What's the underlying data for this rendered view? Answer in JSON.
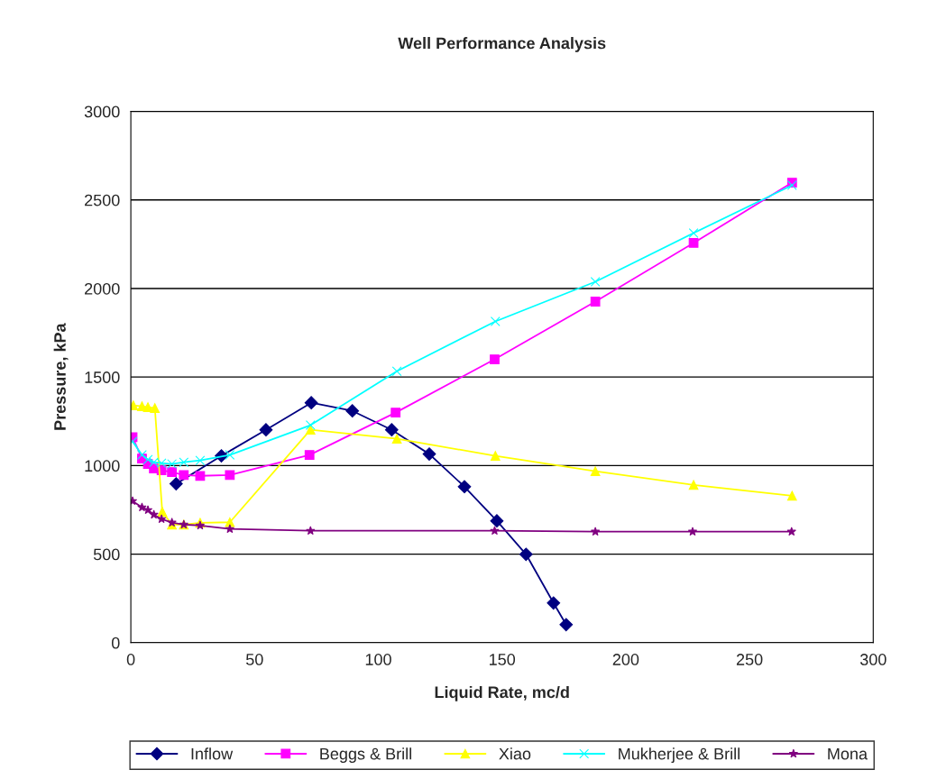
{
  "chart_data": {
    "type": "line",
    "title": "Well Performance Analysis",
    "xlabel": "Liquid Rate, mc/d",
    "ylabel": "Pressure, kPa",
    "xlim": [
      0,
      300
    ],
    "xticks": [
      0,
      50,
      100,
      150,
      200,
      250,
      300
    ],
    "ylim": [
      0,
      3000
    ],
    "yticks": [
      0,
      500,
      1000,
      1500,
      2000,
      2500,
      3000
    ],
    "grid": "y",
    "legend": "bottom",
    "series": [
      {
        "name": "Inflow",
        "color": "#000080",
        "marker": "diamond",
        "x": [
          18.3,
          36.6,
          54.6,
          72.9,
          89.5,
          105.4,
          120.6,
          134.8,
          147.9,
          159.7,
          170.8,
          175.9
        ],
        "values": [
          897,
          1055,
          1202,
          1355,
          1309,
          1202,
          1065,
          881,
          688,
          499,
          224,
          102
        ]
      },
      {
        "name": "Beggs & Brill",
        "color": "#ff00ff",
        "marker": "square",
        "x": [
          0.7,
          4.5,
          6.9,
          9.3,
          12.4,
          16.6,
          21.4,
          28,
          40,
          72.2,
          107,
          147,
          187.7,
          227.4,
          267.2
        ],
        "values": [
          1161,
          1039,
          1009,
          983,
          973,
          963,
          947,
          942,
          947,
          1060,
          1299,
          1600,
          1926,
          2257,
          2598
        ]
      },
      {
        "name": "Xiao",
        "color": "#ffff00",
        "marker": "triangle",
        "x": [
          1,
          4.5,
          6.9,
          9.7,
          12.7,
          16.6,
          21.4,
          28,
          40,
          72.6,
          107.5,
          147.3,
          187.7,
          227.4,
          267.2
        ],
        "values": [
          1340,
          1335,
          1330,
          1325,
          739,
          667,
          667,
          677,
          680,
          1202,
          1151,
          1055,
          968,
          891,
          830
        ]
      },
      {
        "name": "Mukherjee & Brill",
        "color": "#00ffff",
        "marker": "cross",
        "x": [
          0.7,
          4.5,
          6.9,
          9.3,
          12.4,
          16.6,
          21.4,
          28,
          40,
          72.6,
          107.5,
          147.3,
          187.7,
          227.4,
          267.2
        ],
        "values": [
          1136,
          1060,
          1034,
          1019,
          1014,
          1009,
          1019,
          1029,
          1060,
          1228,
          1533,
          1814,
          2038,
          2313,
          2583
        ]
      },
      {
        "name": "Mona",
        "color": "#800080",
        "marker": "star",
        "x": [
          0.7,
          4.5,
          6.9,
          9.3,
          12.4,
          16.6,
          21.4,
          28,
          40,
          72.6,
          147,
          187.7,
          227,
          267
        ],
        "values": [
          800,
          764,
          749,
          723,
          698,
          678,
          667,
          662,
          642,
          632,
          632,
          627,
          627,
          627
        ]
      }
    ]
  }
}
